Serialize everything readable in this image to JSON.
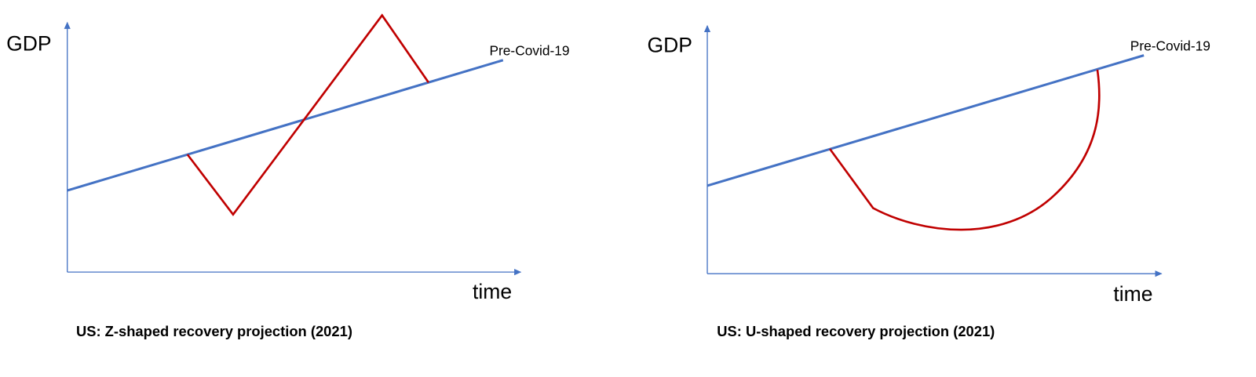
{
  "panels": [
    {
      "y_label": "GDP",
      "x_label": "time",
      "line_label": "Pre-Covid-19",
      "caption": "US: Z-shaped recovery projection (2021)"
    },
    {
      "y_label": "GDP",
      "x_label": "time",
      "line_label": "Pre-Covid-19",
      "caption": "US: U-shaped recovery projection (2021)"
    }
  ]
}
